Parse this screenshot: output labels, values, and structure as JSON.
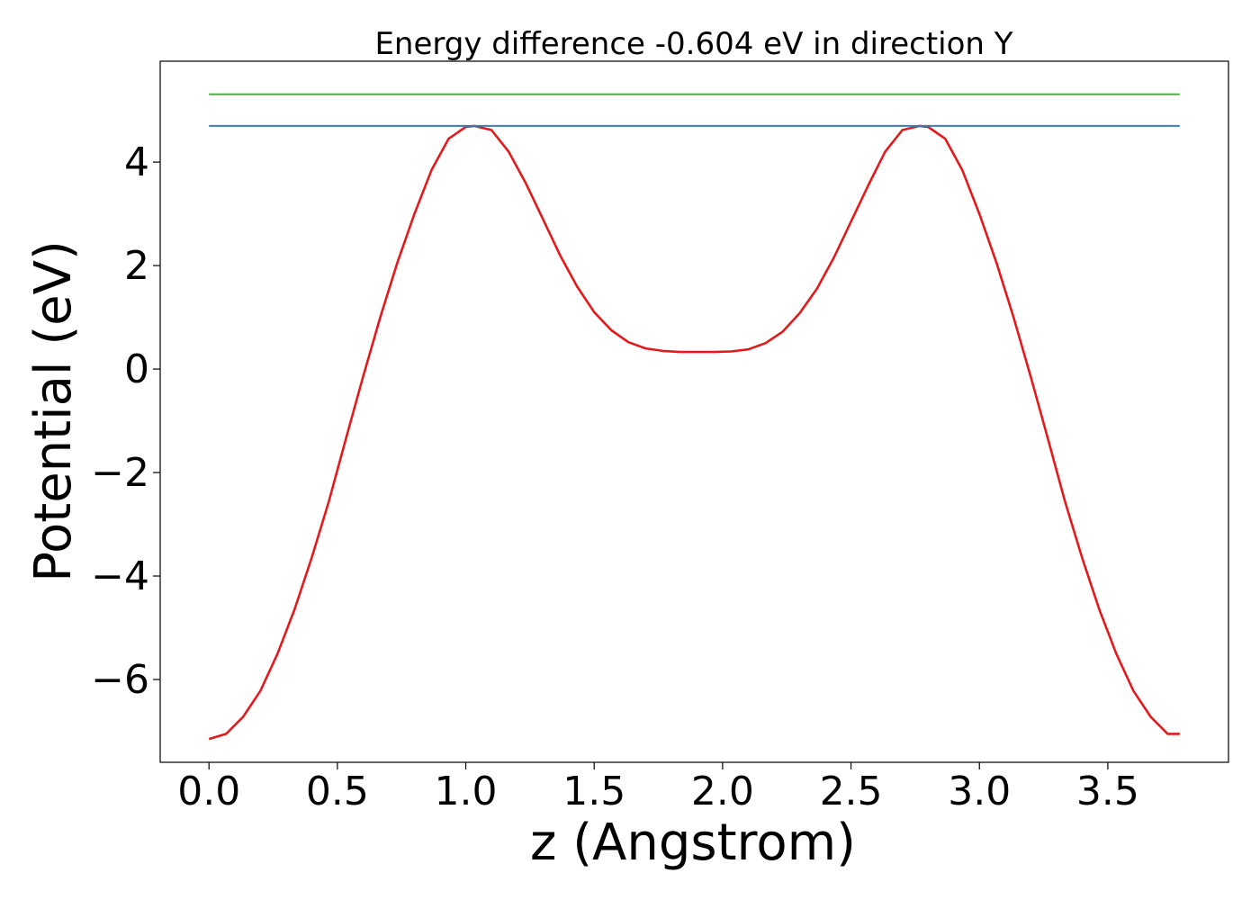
{
  "chart_data": {
    "type": "line",
    "title": "Energy difference -0.604 eV in direction Y",
    "xlabel": "z (Angstrom)",
    "ylabel": "Potential (eV)",
    "xlim": [
      -0.19,
      3.97
    ],
    "ylim": [
      -7.6,
      5.95
    ],
    "xticks": [
      0.0,
      0.5,
      1.0,
      1.5,
      2.0,
      2.5,
      3.0,
      3.5
    ],
    "xtick_labels": [
      "0.0",
      "0.5",
      "1.0",
      "1.5",
      "2.0",
      "2.5",
      "3.0",
      "3.5"
    ],
    "yticks": [
      -6,
      -4,
      -2,
      0,
      2,
      4
    ],
    "ytick_labels": [
      "−6",
      "−4",
      "−2",
      "0",
      "2",
      "4"
    ],
    "grid": false,
    "colors": {
      "potential": "#e31a1c",
      "level_upper": "#4daf4a",
      "level_lower": "#377eb8"
    },
    "series": [
      {
        "x": [
          0.0,
          0.067,
          0.133,
          0.2,
          0.267,
          0.333,
          0.4,
          0.467,
          0.533,
          0.6,
          0.667,
          0.733,
          0.8,
          0.867,
          0.933,
          1.0,
          1.033,
          1.1,
          1.167,
          1.233,
          1.3,
          1.367,
          1.433,
          1.5,
          1.567,
          1.633,
          1.7,
          1.767,
          1.833,
          1.9,
          1.967,
          2.033,
          2.1,
          2.167,
          2.233,
          2.3,
          2.367,
          2.433,
          2.5,
          2.567,
          2.633,
          2.7,
          2.767,
          2.8,
          2.867,
          2.933,
          3.0,
          3.067,
          3.133,
          3.2,
          3.267,
          3.333,
          3.4,
          3.467,
          3.533,
          3.6,
          3.667,
          3.733,
          3.78
        ],
        "values": [
          -7.15,
          -7.05,
          -6.72,
          -6.22,
          -5.5,
          -4.65,
          -3.65,
          -2.55,
          -1.35,
          -0.15,
          1.0,
          2.05,
          3.0,
          3.85,
          4.45,
          4.68,
          4.7,
          4.62,
          4.2,
          3.6,
          2.9,
          2.2,
          1.6,
          1.1,
          0.75,
          0.52,
          0.4,
          0.35,
          0.33,
          0.33,
          0.33,
          0.34,
          0.38,
          0.5,
          0.72,
          1.08,
          1.55,
          2.15,
          2.85,
          3.55,
          4.2,
          4.62,
          4.7,
          4.68,
          4.45,
          3.85,
          3.0,
          2.05,
          1.0,
          -0.15,
          -1.35,
          -2.55,
          -3.65,
          -4.65,
          -5.5,
          -6.22,
          -6.72,
          -7.05,
          -7.05
        ]
      },
      {
        "x": [
          0.0,
          3.78
        ],
        "values": [
          5.31,
          5.31
        ]
      },
      {
        "x": [
          0.0,
          3.78
        ],
        "values": [
          4.7,
          4.7
        ]
      }
    ]
  }
}
